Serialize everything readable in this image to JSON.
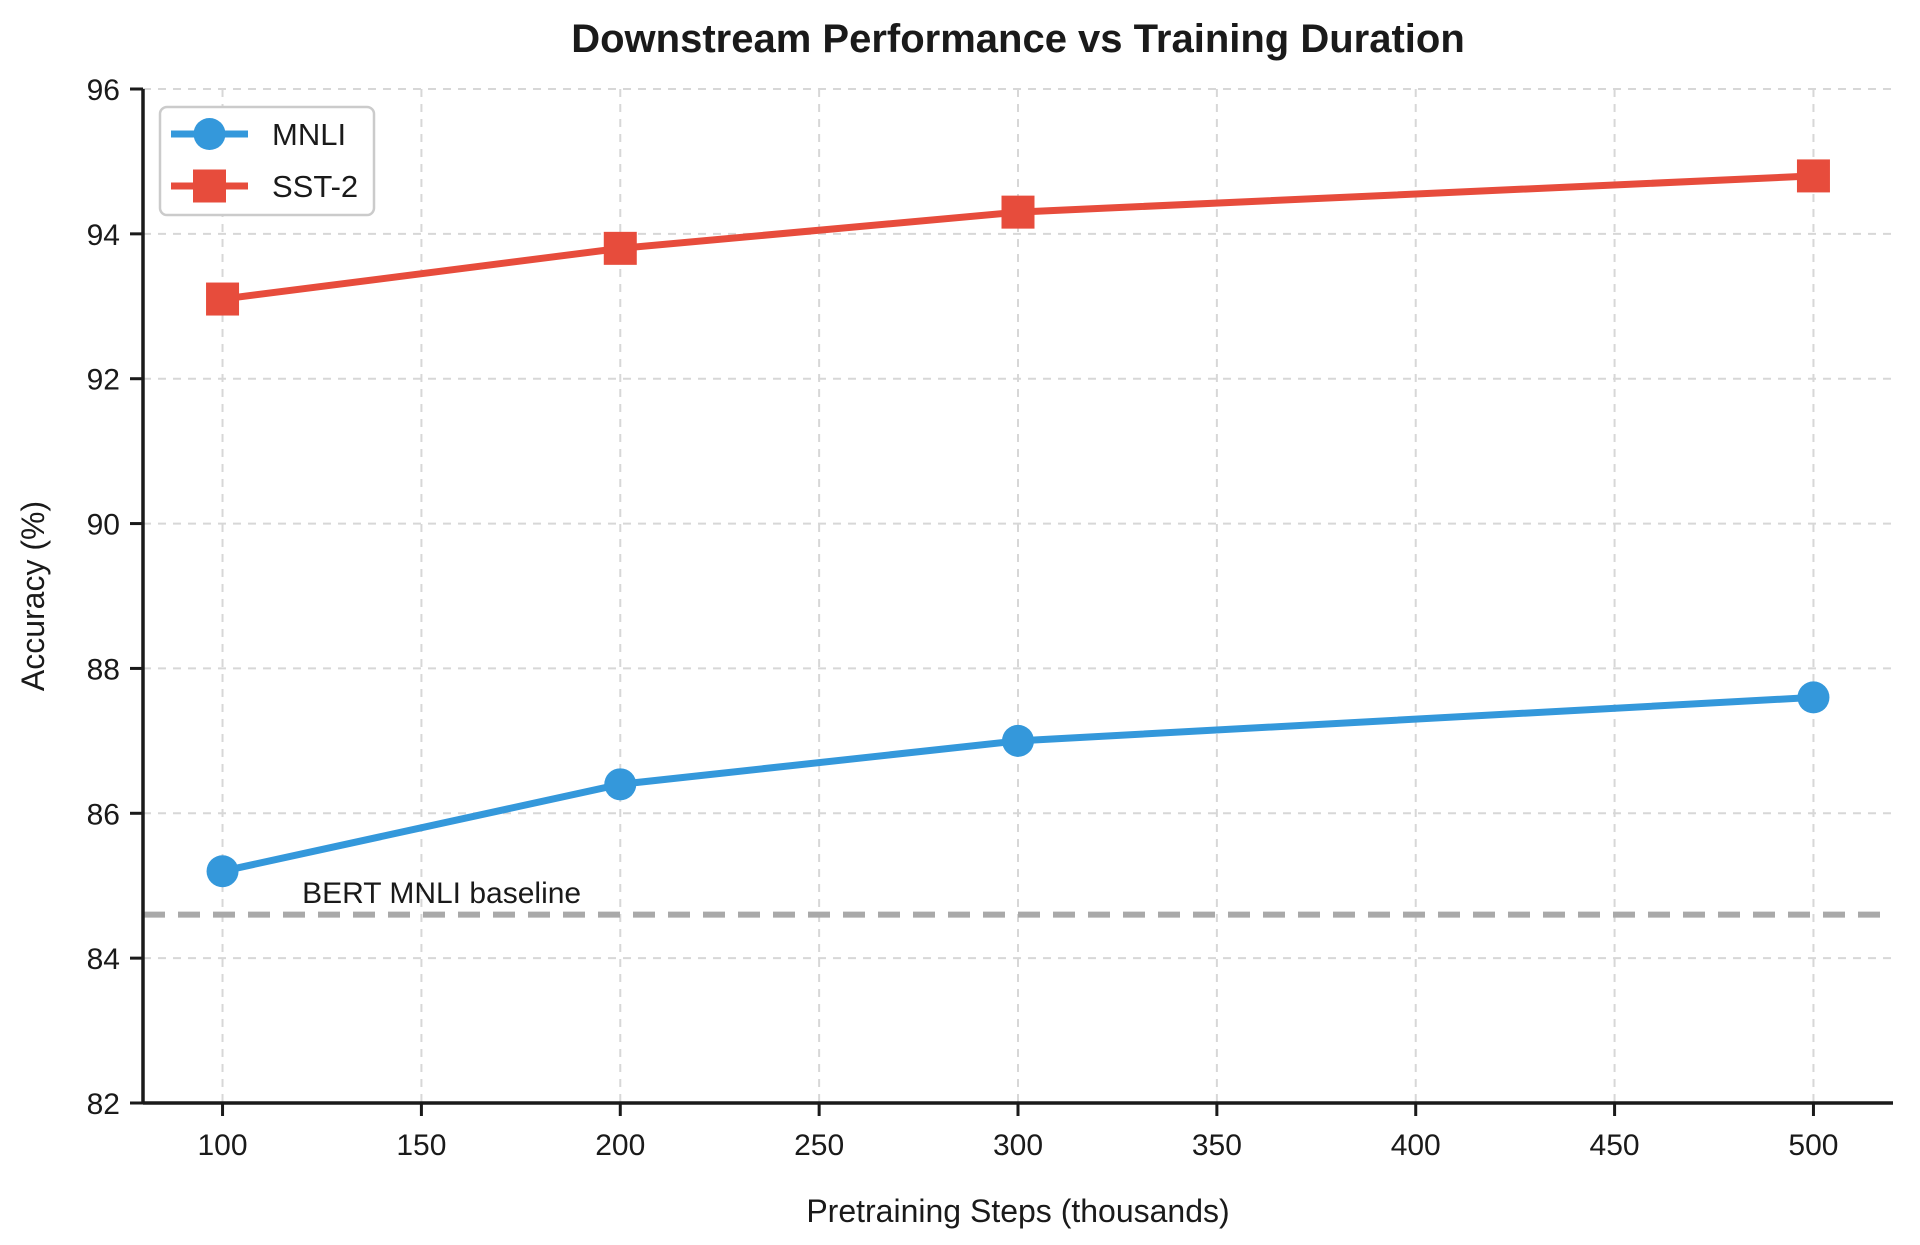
{
  "chart_data": {
    "type": "line",
    "title": "Downstream Performance vs Training Duration",
    "xlabel": "Pretraining Steps (thousands)",
    "ylabel": "Accuracy (%)",
    "xlim": [
      80,
      520
    ],
    "ylim": [
      82,
      96
    ],
    "xticks": [
      100,
      150,
      200,
      250,
      300,
      350,
      400,
      450,
      500
    ],
    "yticks": [
      82,
      84,
      86,
      88,
      90,
      92,
      94,
      96
    ],
    "grid": true,
    "grid_style": "dashed",
    "legend_position": "upper left",
    "x": [
      100,
      200,
      300,
      500
    ],
    "series": [
      {
        "name": "MNLI",
        "color": "#3498db",
        "marker": "circle",
        "values": [
          85.2,
          86.4,
          87.0,
          87.6
        ]
      },
      {
        "name": "SST-2",
        "color": "#e74c3c",
        "marker": "square",
        "values": [
          93.1,
          93.8,
          94.3,
          94.8
        ]
      }
    ],
    "baseline": {
      "label": "BERT MNLI baseline",
      "value": 84.6,
      "color": "#a9a9a9",
      "label_color": "#8c8c8c",
      "style": "dashed",
      "label_x": 120,
      "label_y": 84.9
    },
    "colors": {
      "spine": "#1a1a1a",
      "grid": "#d7d7d7",
      "tick_text": "#262626"
    }
  }
}
